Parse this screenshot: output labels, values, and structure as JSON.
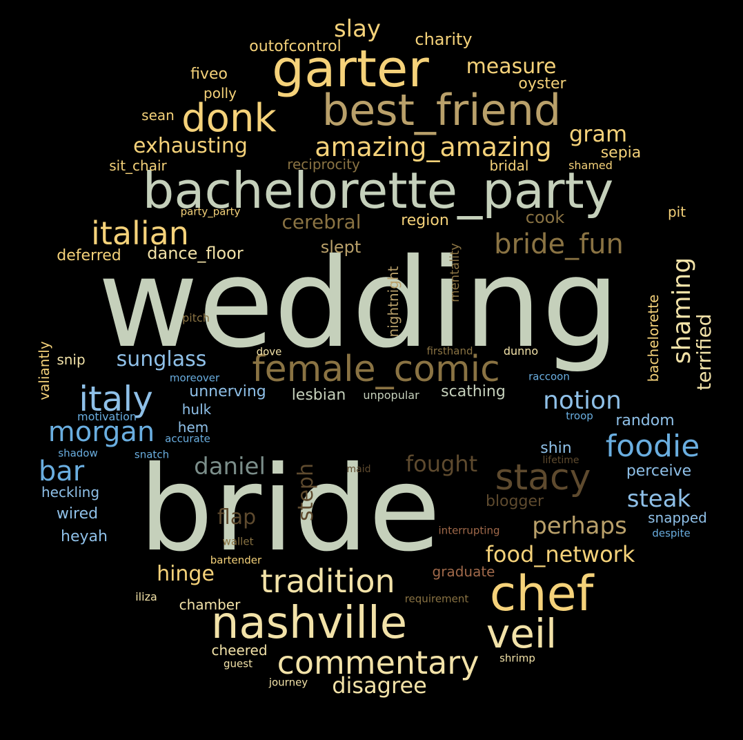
{
  "palette": {
    "sage": "#c5d0bb",
    "gold": "#f5d27a",
    "lightgold": "#f2e2a8",
    "tan": "#b9a06a",
    "darktan": "#8a7343",
    "brown": "#5e4a2e",
    "blue": "#6aaee0",
    "lightblue": "#8fc0e8",
    "slate": "#7b8e8a",
    "rust": "#a0694a"
  },
  "words": [
    {
      "id": "wedding",
      "text": "wedding",
      "color": "sage"
    },
    {
      "id": "bride",
      "text": "bride",
      "color": "sage"
    },
    {
      "id": "bachelorette_party",
      "text": "bachelorette_party",
      "color": "sage"
    },
    {
      "id": "best_friend",
      "text": "best_friend",
      "color": "tan"
    },
    {
      "id": "garter",
      "text": "garter",
      "color": "gold"
    },
    {
      "id": "female_comic",
      "text": "female_comic",
      "color": "darktan"
    },
    {
      "id": "chef",
      "text": "chef",
      "color": "gold"
    },
    {
      "id": "nashville",
      "text": "nashville",
      "color": "lightgold"
    },
    {
      "id": "donk",
      "text": "donk",
      "color": "gold"
    },
    {
      "id": "italian",
      "text": "italian",
      "color": "gold"
    },
    {
      "id": "italy",
      "text": "italy",
      "color": "lightblue"
    },
    {
      "id": "stacy",
      "text": "stacy",
      "color": "brown"
    },
    {
      "id": "veil",
      "text": "veil",
      "color": "lightgold"
    },
    {
      "id": "tradition",
      "text": "tradition",
      "color": "lightgold"
    },
    {
      "id": "commentary",
      "text": "commentary",
      "color": "lightgold"
    },
    {
      "id": "amazing_amazing",
      "text": "amazing_amazing",
      "color": "gold"
    },
    {
      "id": "bride_fun",
      "text": "bride_fun",
      "color": "darktan"
    },
    {
      "id": "foodie",
      "text": "foodie",
      "color": "blue"
    },
    {
      "id": "morgan",
      "text": "morgan",
      "color": "blue"
    },
    {
      "id": "bar",
      "text": "bar",
      "color": "blue"
    },
    {
      "id": "notion",
      "text": "notion",
      "color": "lightblue"
    },
    {
      "id": "shaming",
      "text": "shaming",
      "color": "lightgold"
    },
    {
      "id": "slay",
      "text": "slay",
      "color": "gold"
    },
    {
      "id": "measure",
      "text": "measure",
      "color": "gold"
    },
    {
      "id": "gram",
      "text": "gram",
      "color": "gold"
    },
    {
      "id": "exhausting",
      "text": "exhausting",
      "color": "gold"
    },
    {
      "id": "cerebral",
      "text": "cerebral",
      "color": "darktan"
    },
    {
      "id": "sunglass",
      "text": "sunglass",
      "color": "lightblue"
    },
    {
      "id": "daniel",
      "text": "daniel",
      "color": "slate"
    },
    {
      "id": "steph",
      "text": "steph",
      "color": "brown"
    },
    {
      "id": "fought",
      "text": "fought",
      "color": "brown"
    },
    {
      "id": "perhaps",
      "text": "perhaps",
      "color": "tan"
    },
    {
      "id": "food_network",
      "text": "food_network",
      "color": "gold"
    },
    {
      "id": "steak",
      "text": "steak",
      "color": "lightblue"
    },
    {
      "id": "disagree",
      "text": "disagree",
      "color": "lightgold"
    },
    {
      "id": "hinge",
      "text": "hinge",
      "color": "gold"
    },
    {
      "id": "flap",
      "text": "flap",
      "color": "brown"
    },
    {
      "id": "terrified",
      "text": "terrified",
      "color": "lightgold"
    },
    {
      "id": "charity",
      "text": "charity",
      "color": "gold"
    },
    {
      "id": "outofcontrol",
      "text": "outofcontrol",
      "color": "gold"
    },
    {
      "id": "fiveo",
      "text": "fiveo",
      "color": "gold"
    },
    {
      "id": "polly",
      "text": "polly",
      "color": "gold"
    },
    {
      "id": "oyster",
      "text": "oyster",
      "color": "gold"
    },
    {
      "id": "sean",
      "text": "sean",
      "color": "gold"
    },
    {
      "id": "sepia",
      "text": "sepia",
      "color": "gold"
    },
    {
      "id": "sit_chair",
      "text": "sit_chair",
      "color": "gold"
    },
    {
      "id": "reciprocity",
      "text": "reciprocity",
      "color": "darktan"
    },
    {
      "id": "bridal",
      "text": "bridal",
      "color": "gold"
    },
    {
      "id": "shamed",
      "text": "shamed",
      "color": "gold"
    },
    {
      "id": "party_party",
      "text": "party_party",
      "color": "gold"
    },
    {
      "id": "pit",
      "text": "pit",
      "color": "gold"
    },
    {
      "id": "cook",
      "text": "cook",
      "color": "darktan"
    },
    {
      "id": "region",
      "text": "region",
      "color": "gold"
    },
    {
      "id": "slept",
      "text": "slept",
      "color": "tan"
    },
    {
      "id": "dance_floor",
      "text": "dance_floor",
      "color": "lightgold"
    },
    {
      "id": "deferred",
      "text": "deferred",
      "color": "gold"
    },
    {
      "id": "nightnight",
      "text": "nightnight",
      "color": "tan"
    },
    {
      "id": "mentality",
      "text": "mentality",
      "color": "darktan"
    },
    {
      "id": "bachelorette",
      "text": "bachelorette",
      "color": "gold"
    },
    {
      "id": "pitch",
      "text": "pitch",
      "color": "darktan"
    },
    {
      "id": "valiantly",
      "text": "valiantly",
      "color": "gold"
    },
    {
      "id": "snip",
      "text": "snip",
      "color": "lightgold"
    },
    {
      "id": "dove",
      "text": "dove",
      "color": "lightgold"
    },
    {
      "id": "firsthand",
      "text": "firsthand",
      "color": "darktan"
    },
    {
      "id": "dunno",
      "text": "dunno",
      "color": "lightgold"
    },
    {
      "id": "moreover",
      "text": "moreover",
      "color": "blue"
    },
    {
      "id": "raccoon",
      "text": "raccoon",
      "color": "blue"
    },
    {
      "id": "unnerving",
      "text": "unnerving",
      "color": "lightblue"
    },
    {
      "id": "lesbian",
      "text": "lesbian",
      "color": "sage"
    },
    {
      "id": "unpopular",
      "text": "unpopular",
      "color": "sage"
    },
    {
      "id": "scathing",
      "text": "scathing",
      "color": "sage"
    },
    {
      "id": "hulk",
      "text": "hulk",
      "color": "lightblue"
    },
    {
      "id": "motivation",
      "text": "motivation",
      "color": "blue"
    },
    {
      "id": "troop",
      "text": "troop",
      "color": "blue"
    },
    {
      "id": "random",
      "text": "random",
      "color": "lightblue"
    },
    {
      "id": "hem",
      "text": "hem",
      "color": "lightblue"
    },
    {
      "id": "accurate",
      "text": "accurate",
      "color": "blue"
    },
    {
      "id": "shadow",
      "text": "shadow",
      "color": "blue"
    },
    {
      "id": "snatch",
      "text": "snatch",
      "color": "blue"
    },
    {
      "id": "shin",
      "text": "shin",
      "color": "lightblue"
    },
    {
      "id": "lifetime",
      "text": "lifetime",
      "color": "brown"
    },
    {
      "id": "maid",
      "text": "maid",
      "color": "brown"
    },
    {
      "id": "perceive",
      "text": "perceive",
      "color": "lightblue"
    },
    {
      "id": "heckling",
      "text": "heckling",
      "color": "lightblue"
    },
    {
      "id": "blogger",
      "text": "blogger",
      "color": "brown"
    },
    {
      "id": "wired",
      "text": "wired",
      "color": "lightblue"
    },
    {
      "id": "snapped",
      "text": "snapped",
      "color": "lightblue"
    },
    {
      "id": "heyah",
      "text": "heyah",
      "color": "lightblue"
    },
    {
      "id": "interrupting",
      "text": "interrupting",
      "color": "rust"
    },
    {
      "id": "despite",
      "text": "despite",
      "color": "blue"
    },
    {
      "id": "wallet",
      "text": "wallet",
      "color": "darktan"
    },
    {
      "id": "bartender",
      "text": "bartender",
      "color": "gold"
    },
    {
      "id": "graduate",
      "text": "graduate",
      "color": "rust"
    },
    {
      "id": "iliza",
      "text": "iliza",
      "color": "lightgold"
    },
    {
      "id": "chamber",
      "text": "chamber",
      "color": "lightgold"
    },
    {
      "id": "requirement",
      "text": "requirement",
      "color": "darktan"
    },
    {
      "id": "cheered",
      "text": "cheered",
      "color": "lightgold"
    },
    {
      "id": "guest",
      "text": "guest",
      "color": "lightgold"
    },
    {
      "id": "shrimp",
      "text": "shrimp",
      "color": "lightgold"
    },
    {
      "id": "journey",
      "text": "journey",
      "color": "lightgold"
    }
  ]
}
